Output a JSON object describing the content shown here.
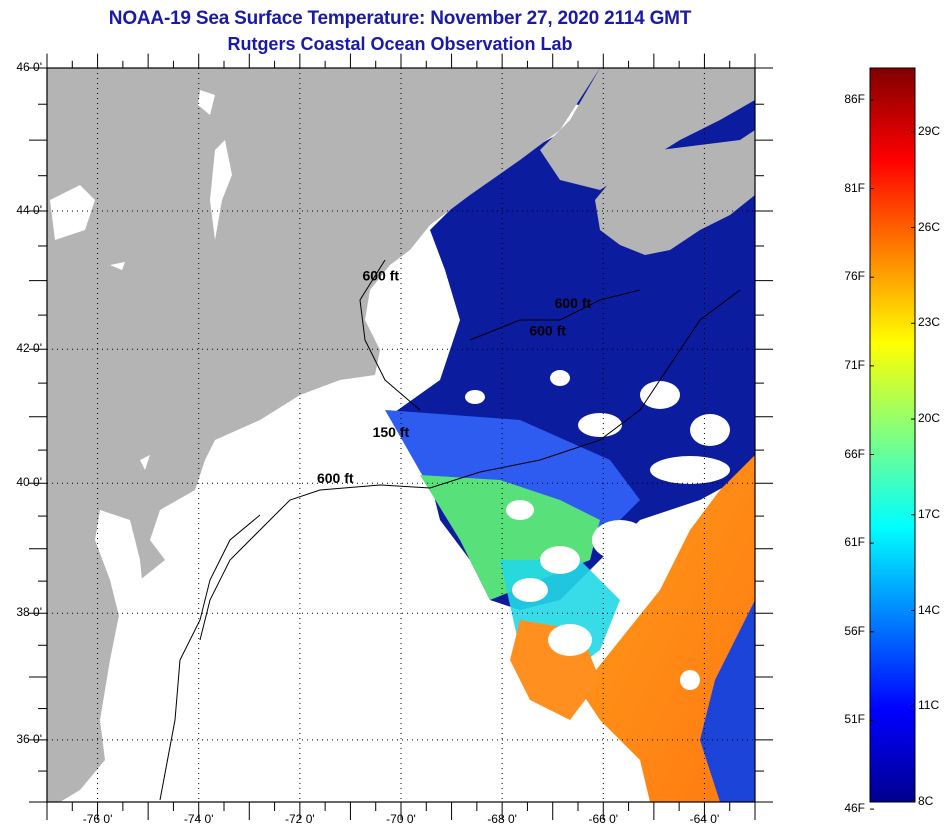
{
  "header": {
    "title": "NOAA-19 Sea Surface Temperature:  November 27, 2020 2114 GMT",
    "subtitle": "Rutgers Coastal Ocean Observation Lab"
  },
  "map": {
    "region": "US Northeast Atlantic coast, Gulf of Maine to Cape Hatteras",
    "lat_range": [
      35,
      46
    ],
    "lon_range": [
      -77,
      -63
    ],
    "lat_labels": [
      "46 0'",
      "44 0'",
      "42 0'",
      "40 0'",
      "38 0'",
      "36 0'"
    ],
    "lat_values": [
      46,
      44,
      42,
      40,
      38,
      36
    ],
    "lon_labels": [
      "-76 0'",
      "-74 0'",
      "-72 0'",
      "-70 0'",
      "-68 0'",
      "-66 0'",
      "-64 0'"
    ],
    "lon_values": [
      -76,
      -74,
      -72,
      -70,
      -68,
      -66,
      -64
    ],
    "contour_labels": [
      {
        "text": "600 ft",
        "lon": -70.4,
        "lat": 43.0
      },
      {
        "text": "600 ft",
        "lon": -66.6,
        "lat": 42.6
      },
      {
        "text": "600 ft",
        "lon": -67.1,
        "lat": 42.2
      },
      {
        "text": "150 ft",
        "lon": -70.2,
        "lat": 40.7
      },
      {
        "text": "600 ft",
        "lon": -71.3,
        "lat": 40.0
      }
    ],
    "colors": {
      "land": "#b4b4b4",
      "cloud_or_nodata": "#ffffff",
      "cold_water": "#0a1aa0",
      "warm_water": "#ff8c1a"
    }
  },
  "colorbar": {
    "fahrenheit_labels": [
      "86F",
      "81F",
      "76F",
      "71F",
      "66F",
      "61F",
      "56F",
      "51F",
      "46F"
    ],
    "celsius_labels": [
      "29C",
      "26C",
      "23C",
      "20C",
      "17C",
      "14C",
      "11C",
      "8C"
    ],
    "min_c": 8,
    "max_c": 31,
    "stops": [
      "#00008f",
      "#0000ff",
      "#0080ff",
      "#00ffff",
      "#80ff80",
      "#ffff00",
      "#ff8000",
      "#ff0000",
      "#800000"
    ]
  }
}
